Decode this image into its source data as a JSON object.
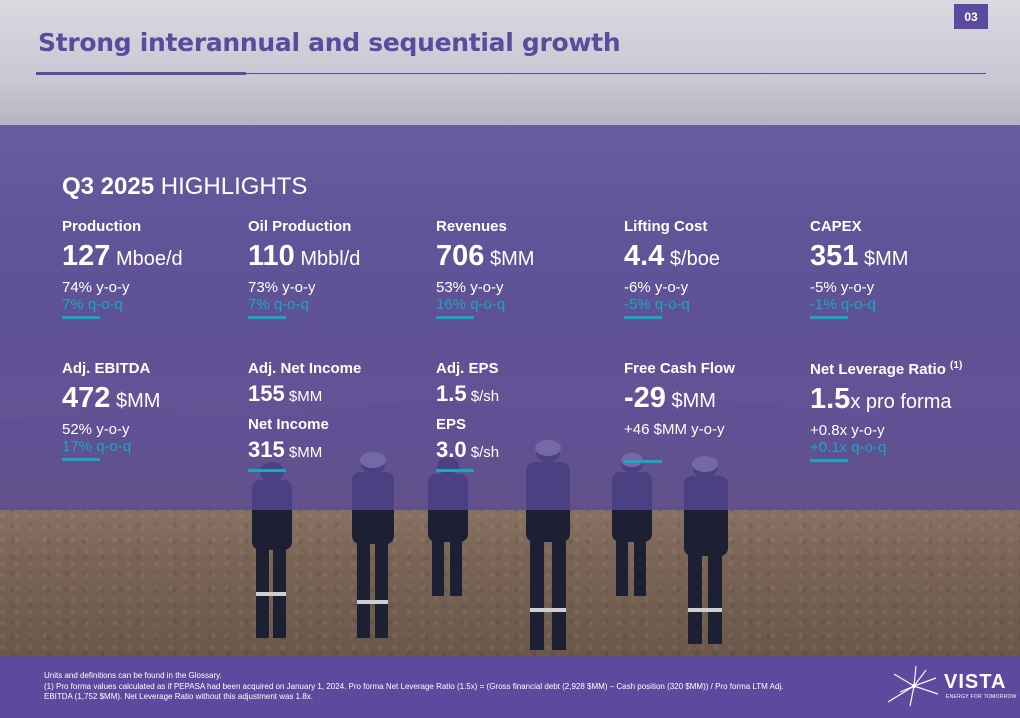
{
  "page_number": "03",
  "title": "Strong interannual and sequential growth",
  "highlights": {
    "title_bold": "Q3 2025",
    "title_rest": " HIGHLIGHTS"
  },
  "metrics": {
    "production": {
      "label": "Production",
      "value": "127",
      "unit": " Mboe/d",
      "yoy": "74% y-o-y",
      "qoq": "7% q-o-q"
    },
    "oil_production": {
      "label": "Oil Production",
      "value": "110",
      "unit": " Mbbl/d",
      "yoy": "73% y-o-y",
      "qoq": "7% q-o-q"
    },
    "revenues": {
      "label": "Revenues",
      "value": "706",
      "unit": " $MM",
      "yoy": "53% y-o-y",
      "qoq": "16% q-o-q"
    },
    "lifting_cost": {
      "label": "Lifting Cost",
      "value": "4.4",
      "unit": " $/boe",
      "yoy": "-6% y-o-y",
      "qoq": "-5% q-o-q"
    },
    "capex": {
      "label": "CAPEX",
      "value": "351",
      "unit": " $MM",
      "yoy": "-5% y-o-y",
      "qoq": "-1% q-o-q"
    },
    "adj_ebitda": {
      "label": "Adj. EBITDA",
      "value": "472",
      "unit": " $MM",
      "yoy": "52% y-o-y",
      "qoq": "17% q-o-q"
    },
    "adj_net_income": {
      "label": "Adj. Net Income",
      "value": "155",
      "unit": " $MM"
    },
    "net_income": {
      "label": "Net Income",
      "value": "315",
      "unit": " $MM"
    },
    "adj_eps": {
      "label": "Adj. EPS",
      "value": "1.5",
      "unit": " $/sh"
    },
    "eps": {
      "label": "EPS",
      "value": "3.0",
      "unit": " $/sh"
    },
    "free_cash_flow": {
      "label": "Free Cash Flow",
      "value": "-29",
      "unit": " $MM",
      "yoy": "+46 $MM y-o-y"
    },
    "net_leverage": {
      "label": "Net Leverage Ratio ",
      "label_sup": "(1)",
      "value": "1.5",
      "unit": "x pro forma",
      "yoy": "+0.8x y-o-y",
      "qoq": "+0.1x q-o-q"
    }
  },
  "footer": {
    "line1": "Units and definitions can be found in the Glossary.",
    "line2": "(1)      Pro forma values calculated as if PEPASA had been acquired on January 1, 2024. Pro forma Net Leverage Ratio (1.5x) = (Gross financial debt (2,928 $MM) – Cash position (320 $MM)) / Pro forma LTM Adj.",
    "line3": "EBITDA (1,752 $MM). Net Leverage Ratio without this adjustment was 1.8x."
  },
  "logo": {
    "name": "VISTA",
    "tagline": "ENERGY FOR TOMORROW"
  },
  "colors": {
    "brand_purple": "#5b4a9e",
    "accent_teal": "#17a8c0",
    "text_white": "#ffffff"
  }
}
